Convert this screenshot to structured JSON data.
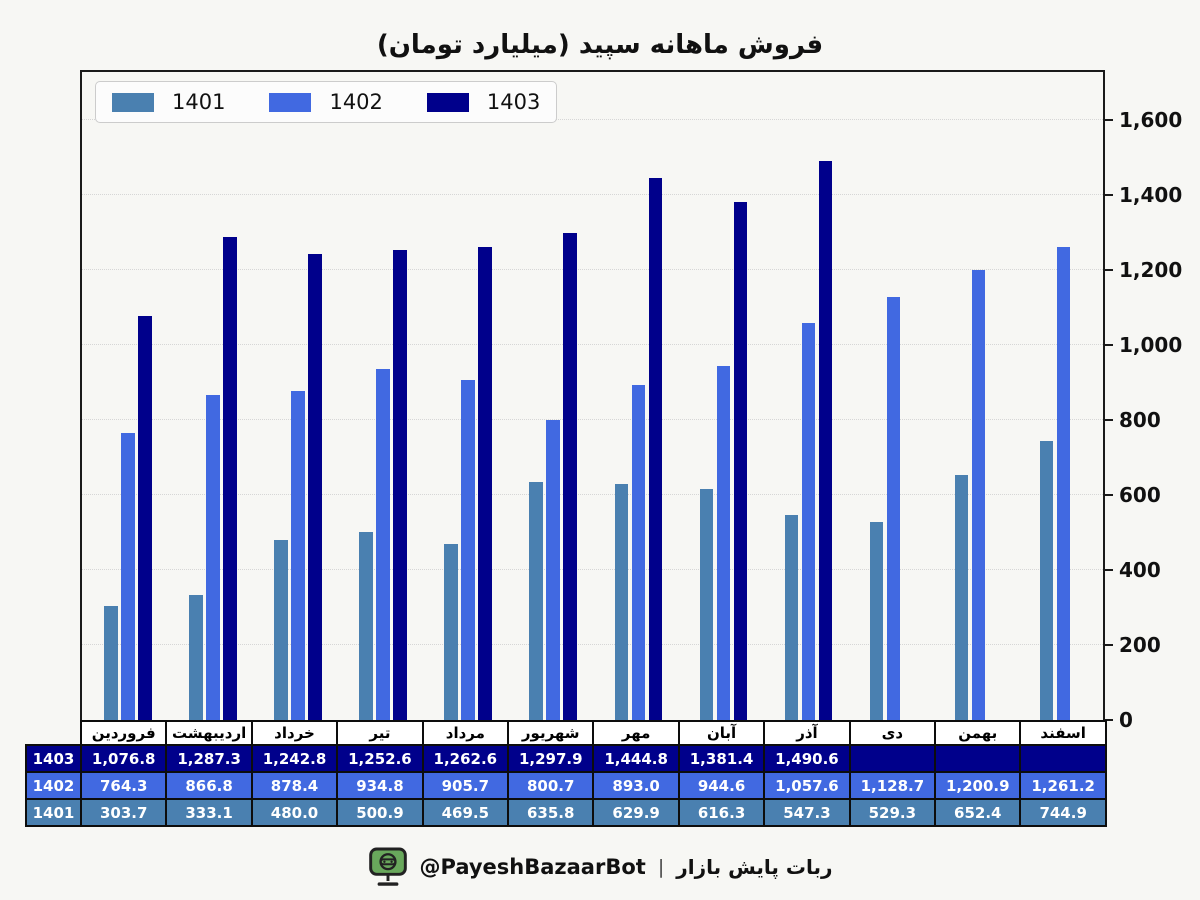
{
  "title": "فروش ماهانه سپید (میلیارد تومان)",
  "colors": {
    "series_1401": "#4a80b0",
    "series_1402": "#4169e1",
    "series_1403": "#00008b",
    "page_bg": "#f7f7f4",
    "plot_border": "#1a1a1a",
    "grid": "#d6d6d6",
    "footer_icon_green": "#69a85c"
  },
  "chart_data": {
    "type": "bar",
    "title": "فروش ماهانه سپید (میلیارد تومان)",
    "xlabel": "",
    "ylabel": "",
    "categories": [
      "فروردین",
      "اردیبهشت",
      "خرداد",
      "تیر",
      "مرداد",
      "شهریور",
      "مهر",
      "آبان",
      "آذر",
      "دی",
      "بهمن",
      "اسفند"
    ],
    "series": [
      {
        "name": "1401",
        "color": "#4a80b0",
        "values": [
          303.7,
          333.1,
          480.0,
          500.9,
          469.5,
          635.8,
          629.9,
          616.3,
          547.3,
          529.3,
          652.4,
          744.9
        ]
      },
      {
        "name": "1402",
        "color": "#4169e1",
        "values": [
          764.3,
          866.8,
          878.4,
          934.8,
          905.7,
          800.7,
          893.0,
          944.6,
          1057.6,
          1128.7,
          1200.9,
          1261.2
        ]
      },
      {
        "name": "1403",
        "color": "#00008b",
        "values": [
          1076.8,
          1287.3,
          1242.8,
          1252.6,
          1262.6,
          1297.9,
          1444.8,
          1381.4,
          1490.6,
          null,
          null,
          null
        ]
      }
    ],
    "ylim": [
      0,
      1728
    ],
    "yticks": [
      0,
      200,
      400,
      600,
      800,
      1000,
      1200,
      1400,
      1600
    ],
    "ytick_labels": [
      "0",
      "200",
      "400",
      "600",
      "800",
      "1,000",
      "1,200",
      "1,400",
      "1,600"
    ],
    "grid": "horizontal-dotted",
    "legend_position": "top-left"
  },
  "table": {
    "header": [
      "فروردین",
      "اردیبهشت",
      "خرداد",
      "تیر",
      "مرداد",
      "شهریور",
      "مهر",
      "آبان",
      "آذر",
      "دی",
      "بهمن",
      "اسفند"
    ],
    "rows": [
      {
        "label": "1403",
        "color": "#00008b",
        "cells": [
          "1,076.8",
          "1,287.3",
          "1,242.8",
          "1,252.6",
          "1,262.6",
          "1,297.9",
          "1,444.8",
          "1,381.4",
          "1,490.6",
          "",
          "",
          ""
        ]
      },
      {
        "label": "1402",
        "color": "#4169e1",
        "cells": [
          "764.3",
          "866.8",
          "878.4",
          "934.8",
          "905.7",
          "800.7",
          "893.0",
          "944.6",
          "1,057.6",
          "1,128.7",
          "1,200.9",
          "1,261.2"
        ]
      },
      {
        "label": "1401",
        "color": "#4a80b0",
        "cells": [
          "303.7",
          "333.1",
          "480.0",
          "500.9",
          "469.5",
          "635.8",
          "629.9",
          "616.3",
          "547.3",
          "529.3",
          "652.4",
          "744.9"
        ]
      }
    ]
  },
  "footer": {
    "icon": "robot-monitor-icon",
    "handle": "@PayeshBazaarBot",
    "separator": "|",
    "caption": "ربات پایش بازار"
  }
}
